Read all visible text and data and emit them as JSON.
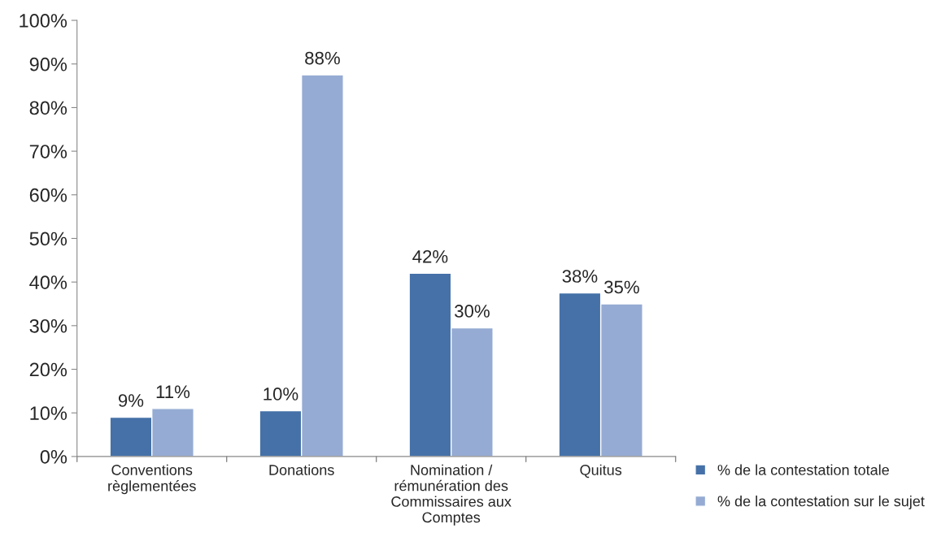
{
  "chart_data": {
    "type": "bar",
    "categories": [
      "Conventions\nrèglementées",
      "Donations",
      "Nomination /\nrémunération des\nCommissaires aux\nComptes",
      "Quitus"
    ],
    "series": [
      {
        "name": "% de la contestation totale",
        "color": "#4571a8",
        "values": [
          9,
          10.5,
          42,
          37.5
        ],
        "value_labels": [
          "9%",
          "10%",
          "42%",
          "38%"
        ]
      },
      {
        "name": "% de la contestation sur le sujet",
        "color": "#95abd3",
        "values": [
          11,
          87.5,
          29.5,
          35
        ],
        "value_labels": [
          "11%",
          "88%",
          "30%",
          "35%"
        ]
      }
    ],
    "ylim": [
      0,
      100
    ],
    "yticks": [
      {
        "value": 0,
        "label": "0%"
      },
      {
        "value": 10,
        "label": "10%"
      },
      {
        "value": 20,
        "label": "20%"
      },
      {
        "value": 30,
        "label": "30%"
      },
      {
        "value": 40,
        "label": "40%"
      },
      {
        "value": 50,
        "label": "50%"
      },
      {
        "value": 60,
        "label": "60%"
      },
      {
        "value": 70,
        "label": "70%"
      },
      {
        "value": 80,
        "label": "80%"
      },
      {
        "value": 90,
        "label": "90%"
      },
      {
        "value": 100,
        "label": "100%"
      }
    ],
    "grid": false,
    "legend": "right"
  }
}
